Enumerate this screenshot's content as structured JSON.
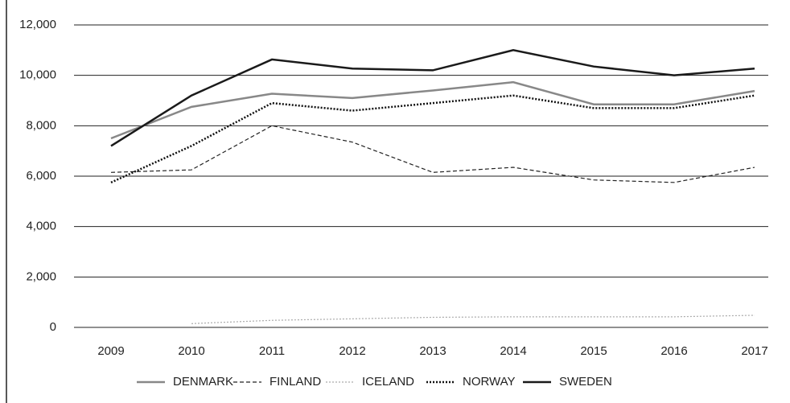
{
  "chart_data": {
    "type": "line",
    "categories": [
      "2009",
      "2010",
      "2011",
      "2012",
      "2013",
      "2014",
      "2015",
      "2016",
      "2017"
    ],
    "ylim": [
      0,
      12000
    ],
    "yticks": [
      0,
      {
        "value": 2000,
        "label": "2,000"
      },
      {
        "value": 4000,
        "label": "4,000"
      },
      {
        "value": 6000,
        "label": "6,000"
      },
      {
        "value": 8000,
        "label": "8,000"
      },
      {
        "value": 10000,
        "label": "10,000"
      },
      {
        "value": 12000,
        "label": "12,000"
      }
    ],
    "grid": true,
    "legend": "bottom",
    "series": [
      {
        "name": "DENMARK",
        "color": "#888888",
        "dash": "solid",
        "values": [
          7500,
          8750,
          9270,
          9100,
          9400,
          9730,
          8850,
          8850,
          9380
        ]
      },
      {
        "name": "FINLAND",
        "color": "#222222",
        "dash": "dashed",
        "values": [
          6150,
          6250,
          8000,
          7350,
          6150,
          6350,
          5850,
          5750,
          6350
        ]
      },
      {
        "name": "ICELAND",
        "color": "#aaaaaa",
        "dash": "dotted",
        "values": [
          null,
          150,
          280,
          340,
          400,
          420,
          420,
          420,
          480
        ]
      },
      {
        "name": "NORWAY",
        "color": "#111111",
        "dash": "dotted",
        "values": [
          5750,
          7200,
          8900,
          8600,
          8900,
          9200,
          8700,
          8700,
          9200
        ]
      },
      {
        "name": "SWEDEN",
        "color": "#1a1a1a",
        "dash": "solid",
        "values": [
          7200,
          9200,
          10630,
          10270,
          10200,
          11000,
          10350,
          10000,
          10270
        ]
      }
    ]
  }
}
